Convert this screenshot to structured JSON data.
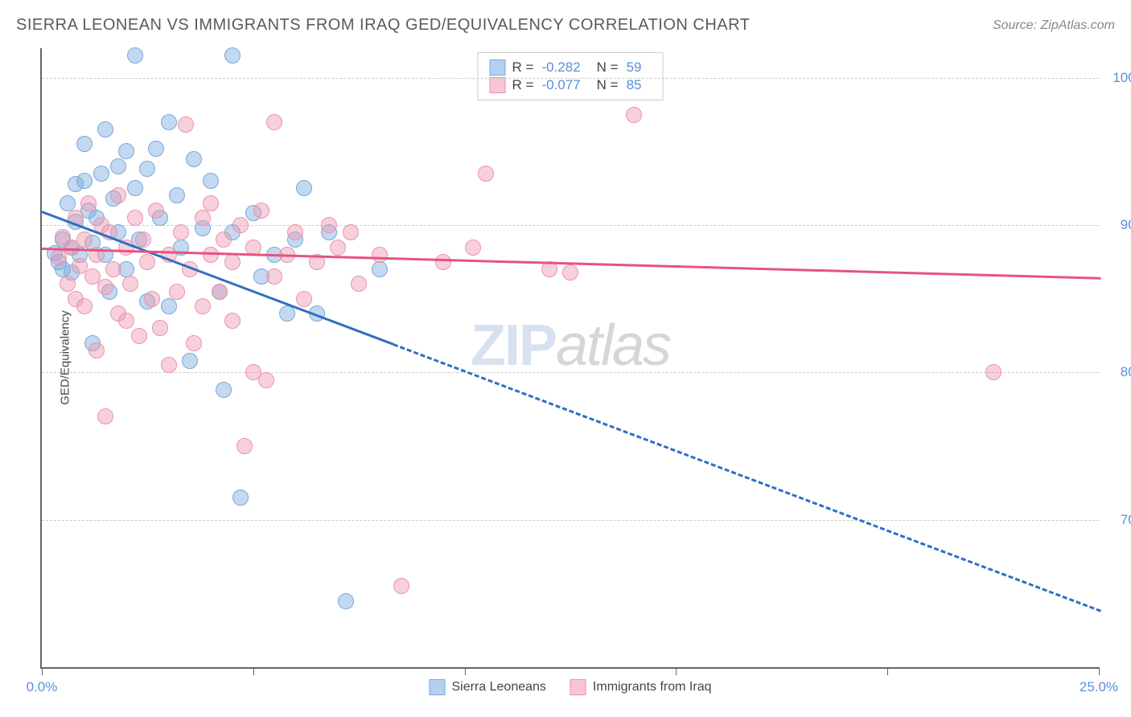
{
  "header": {
    "title": "SIERRA LEONEAN VS IMMIGRANTS FROM IRAQ GED/EQUIVALENCY CORRELATION CHART",
    "source": "Source: ZipAtlas.com"
  },
  "chart": {
    "type": "scatter",
    "yaxis_label": "GED/Equivalency",
    "xlim": [
      0,
      25
    ],
    "ylim": [
      60,
      102
    ],
    "x_ticks": [
      0,
      5,
      10,
      15,
      20,
      25
    ],
    "x_tick_labels": {
      "0": "0.0%",
      "25": "25.0%"
    },
    "y_gridlines": [
      70,
      80,
      90,
      100
    ],
    "y_tick_labels": {
      "70": "70.0%",
      "80": "80.0%",
      "90": "90.0%",
      "100": "100.0%"
    },
    "background_color": "#ffffff",
    "grid_color": "#cccccc",
    "axis_color": "#666666",
    "tick_label_color": "#5b8fd6",
    "tick_fontsize": 17,
    "title_fontsize": 20,
    "title_color": "#5a5a5a",
    "series": [
      {
        "name": "Sierra Leoneans",
        "fill_color": "rgba(120,170,225,0.45)",
        "stroke_color": "#7aa8d8",
        "line_color": "#2f6fc2",
        "marker_radius": 10,
        "R": -0.282,
        "N": 59,
        "trend": {
          "x1": 0,
          "y1": 91.0,
          "x2": 25,
          "y2": 64.0,
          "solid_until_x": 8.3
        },
        "points": [
          [
            0.3,
            88.1
          ],
          [
            0.4,
            87.5
          ],
          [
            0.5,
            89.0
          ],
          [
            0.5,
            87.0
          ],
          [
            0.6,
            91.5
          ],
          [
            0.7,
            86.8
          ],
          [
            0.7,
            88.5
          ],
          [
            0.8,
            90.2
          ],
          [
            0.8,
            92.8
          ],
          [
            0.9,
            88.0
          ],
          [
            1.0,
            95.5
          ],
          [
            1.0,
            93.0
          ],
          [
            1.1,
            91.0
          ],
          [
            1.2,
            88.8
          ],
          [
            1.2,
            82.0
          ],
          [
            1.3,
            90.5
          ],
          [
            1.4,
            93.5
          ],
          [
            1.5,
            88.0
          ],
          [
            1.5,
            96.5
          ],
          [
            1.6,
            85.5
          ],
          [
            1.7,
            91.8
          ],
          [
            1.8,
            94.0
          ],
          [
            1.8,
            89.5
          ],
          [
            2.0,
            95.0
          ],
          [
            2.0,
            87.0
          ],
          [
            2.2,
            92.5
          ],
          [
            2.2,
            101.5
          ],
          [
            2.3,
            89.0
          ],
          [
            2.5,
            84.8
          ],
          [
            2.5,
            93.8
          ],
          [
            2.7,
            95.2
          ],
          [
            2.8,
            90.5
          ],
          [
            3.0,
            97.0
          ],
          [
            3.0,
            84.5
          ],
          [
            3.2,
            92.0
          ],
          [
            3.3,
            88.5
          ],
          [
            3.5,
            80.8
          ],
          [
            3.6,
            94.5
          ],
          [
            3.8,
            89.8
          ],
          [
            4.0,
            93.0
          ],
          [
            4.2,
            85.5
          ],
          [
            4.3,
            78.8
          ],
          [
            4.5,
            89.5
          ],
          [
            4.5,
            101.5
          ],
          [
            4.7,
            71.5
          ],
          [
            5.0,
            90.8
          ],
          [
            5.2,
            86.5
          ],
          [
            5.5,
            88.0
          ],
          [
            5.8,
            84.0
          ],
          [
            6.0,
            89.0
          ],
          [
            6.2,
            92.5
          ],
          [
            6.5,
            84.0
          ],
          [
            6.8,
            89.5
          ],
          [
            7.2,
            64.5
          ],
          [
            8.0,
            87.0
          ]
        ]
      },
      {
        "name": "Immigrants from Iraq",
        "fill_color": "rgba(240,150,175,0.45)",
        "stroke_color": "#e695ad",
        "line_color": "#e6537e",
        "marker_radius": 10,
        "R": -0.077,
        "N": 85,
        "trend": {
          "x1": 0,
          "y1": 88.5,
          "x2": 25,
          "y2": 86.5,
          "solid_until_x": 25
        },
        "points": [
          [
            0.4,
            87.8
          ],
          [
            0.5,
            89.2
          ],
          [
            0.6,
            86.0
          ],
          [
            0.7,
            88.5
          ],
          [
            0.8,
            90.5
          ],
          [
            0.8,
            85.0
          ],
          [
            0.9,
            87.2
          ],
          [
            1.0,
            89.0
          ],
          [
            1.0,
            84.5
          ],
          [
            1.1,
            91.5
          ],
          [
            1.2,
            86.5
          ],
          [
            1.3,
            88.0
          ],
          [
            1.3,
            81.5
          ],
          [
            1.4,
            90.0
          ],
          [
            1.5,
            85.8
          ],
          [
            1.5,
            77.0
          ],
          [
            1.6,
            89.5
          ],
          [
            1.7,
            87.0
          ],
          [
            1.8,
            92.0
          ],
          [
            1.8,
            84.0
          ],
          [
            2.0,
            88.5
          ],
          [
            2.0,
            83.5
          ],
          [
            2.1,
            86.0
          ],
          [
            2.2,
            90.5
          ],
          [
            2.3,
            82.5
          ],
          [
            2.4,
            89.0
          ],
          [
            2.5,
            87.5
          ],
          [
            2.6,
            85.0
          ],
          [
            2.7,
            91.0
          ],
          [
            2.8,
            83.0
          ],
          [
            3.0,
            88.0
          ],
          [
            3.0,
            80.5
          ],
          [
            3.2,
            85.5
          ],
          [
            3.3,
            89.5
          ],
          [
            3.4,
            96.8
          ],
          [
            3.5,
            87.0
          ],
          [
            3.6,
            82.0
          ],
          [
            3.8,
            84.5
          ],
          [
            3.8,
            90.5
          ],
          [
            4.0,
            88.0
          ],
          [
            4.0,
            91.5
          ],
          [
            4.2,
            85.5
          ],
          [
            4.3,
            89.0
          ],
          [
            4.5,
            83.5
          ],
          [
            4.5,
            87.5
          ],
          [
            4.7,
            90.0
          ],
          [
            4.8,
            75.0
          ],
          [
            5.0,
            88.5
          ],
          [
            5.0,
            80.0
          ],
          [
            5.2,
            91.0
          ],
          [
            5.3,
            79.5
          ],
          [
            5.5,
            86.5
          ],
          [
            5.5,
            97.0
          ],
          [
            5.8,
            88.0
          ],
          [
            6.0,
            89.5
          ],
          [
            6.2,
            85.0
          ],
          [
            6.5,
            87.5
          ],
          [
            6.8,
            90.0
          ],
          [
            7.0,
            88.5
          ],
          [
            7.3,
            89.5
          ],
          [
            7.5,
            86.0
          ],
          [
            8.0,
            88.0
          ],
          [
            8.5,
            65.5
          ],
          [
            9.5,
            87.5
          ],
          [
            10.2,
            88.5
          ],
          [
            10.5,
            93.5
          ],
          [
            12.0,
            87.0
          ],
          [
            12.5,
            86.8
          ],
          [
            14.0,
            97.5
          ],
          [
            22.5,
            80.0
          ]
        ]
      }
    ],
    "legend_top": {
      "border_color": "#cccccc",
      "rows": [
        {
          "swatch_fill": "rgba(120,170,225,0.55)",
          "swatch_border": "#7aa8d8",
          "R": "-0.282",
          "N": "59"
        },
        {
          "swatch_fill": "rgba(240,150,175,0.55)",
          "swatch_border": "#e695ad",
          "R": "-0.077",
          "N": "85"
        }
      ]
    },
    "legend_bottom": [
      {
        "swatch_fill": "rgba(120,170,225,0.55)",
        "swatch_border": "#7aa8d8",
        "label": "Sierra Leoneans"
      },
      {
        "swatch_fill": "rgba(240,150,175,0.55)",
        "swatch_border": "#e695ad",
        "label": "Immigrants from Iraq"
      }
    ],
    "watermark": {
      "part1": "ZIP",
      "part2": "atlas"
    }
  }
}
